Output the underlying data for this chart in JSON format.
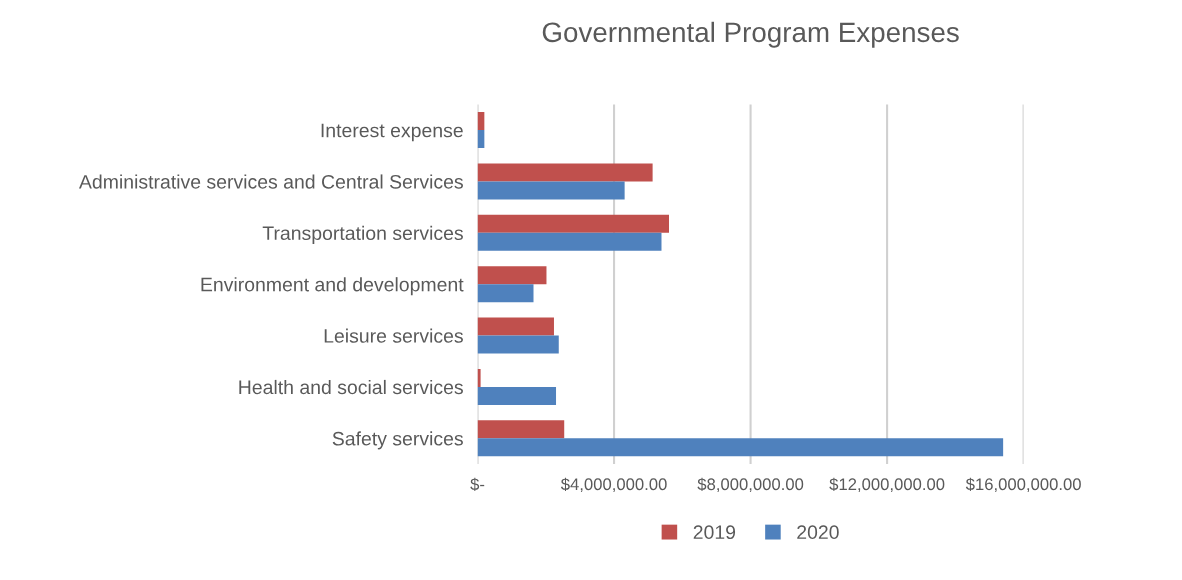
{
  "chart_data": {
    "type": "bar",
    "orientation": "horizontal",
    "title": "Governmental Program Expenses",
    "categories": [
      "Interest expense",
      "Administrative services and Central Services",
      "Transportation services",
      "Environment and development",
      "Leisure services",
      "Health and social services",
      "Safety services"
    ],
    "series": [
      {
        "name": "2019",
        "color": "#c0504d",
        "values": [
          200000,
          5130000,
          5610000,
          2020000,
          2240000,
          90000,
          2540000
        ]
      },
      {
        "name": "2020",
        "color": "#4f81bd",
        "values": [
          200000,
          4310000,
          5390000,
          1640000,
          2380000,
          2300000,
          15400000
        ]
      }
    ],
    "xlim": [
      0,
      16000000
    ],
    "xticks": [
      {
        "value": 0,
        "label": "$-"
      },
      {
        "value": 4000000,
        "label": "$4,000,000.00"
      },
      {
        "value": 8000000,
        "label": "$8,000,000.00"
      },
      {
        "value": 12000000,
        "label": "$12,000,000.00"
      },
      {
        "value": 16000000,
        "label": "$16,000,000.00"
      }
    ],
    "grid": "x",
    "legend": "bottom"
  }
}
